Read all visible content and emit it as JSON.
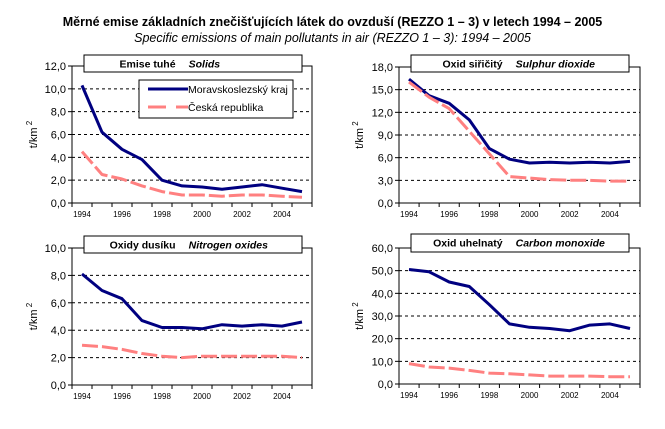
{
  "title": "Měrné emise základních znečišťujících látek do ovzduší (REZZO 1 – 3) v letech 1994 – 2005",
  "subtitle": "Specific emissions of main pollutants in air (REZZO 1 – 3): 1994 – 2005",
  "colors": {
    "msk": "#000080",
    "cr": "#ff8080",
    "grid": "#000000"
  },
  "legend": {
    "position": "top-right (first chart)",
    "items": [
      "Moravskoslezský kraj",
      "Česká republika"
    ]
  },
  "chart_data": [
    {
      "type": "line",
      "title_cz": "Emise tuhé",
      "title_en": "Solids",
      "ylabel": "t/km",
      "ylabel_sup": "2",
      "ylim": [
        0,
        12
      ],
      "yticks": [
        0,
        2,
        4,
        6,
        8,
        10,
        12
      ],
      "ytick_labels": [
        "0,0",
        "2,0",
        "4,0",
        "6,0",
        "8,0",
        "10,0",
        "12,0"
      ],
      "x": [
        1994,
        1995,
        1996,
        1997,
        1998,
        1999,
        2000,
        2001,
        2002,
        2003,
        2004,
        2005
      ],
      "xtick_labels": [
        "1994",
        "1996",
        "1998",
        "2000",
        "2002",
        "2004"
      ],
      "grid": true,
      "series": [
        {
          "name": "Moravskoslezský kraj",
          "values": [
            10.3,
            6.2,
            4.7,
            3.8,
            2.0,
            1.5,
            1.4,
            1.2,
            1.4,
            1.6,
            1.3,
            1.0
          ]
        },
        {
          "name": "Česká republika",
          "values": [
            4.5,
            2.5,
            2.1,
            1.5,
            1.0,
            0.7,
            0.7,
            0.6,
            0.7,
            0.7,
            0.6,
            0.5
          ]
        }
      ]
    },
    {
      "type": "line",
      "title_cz": "Oxid siřičitý",
      "title_en": "Sulphur dioxide",
      "ylabel": "t/km",
      "ylabel_sup": "2",
      "ylim": [
        0,
        18
      ],
      "yticks": [
        0,
        3,
        6,
        9,
        12,
        15,
        18
      ],
      "ytick_labels": [
        "0,0",
        "3,0",
        "6,0",
        "9,0",
        "12,0",
        "15,0",
        "18,0"
      ],
      "x": [
        1994,
        1995,
        1996,
        1997,
        1998,
        1999,
        2000,
        2001,
        2002,
        2003,
        2004,
        2005
      ],
      "xtick_labels": [
        "1994",
        "1996",
        "1998",
        "2000",
        "2002",
        "2004"
      ],
      "grid": true,
      "series": [
        {
          "name": "Moravskoslezský kraj",
          "values": [
            16.4,
            14.2,
            13.2,
            11.0,
            7.2,
            5.8,
            5.3,
            5.4,
            5.3,
            5.4,
            5.3,
            5.5
          ]
        },
        {
          "name": "Česká republika",
          "values": [
            16.0,
            14.0,
            12.5,
            9.5,
            6.5,
            3.5,
            3.3,
            3.1,
            3.0,
            3.0,
            2.9,
            2.9
          ]
        }
      ]
    },
    {
      "type": "line",
      "title_cz": "Oxidy dusíku",
      "title_en": "Nitrogen oxides",
      "ylabel": "t/km",
      "ylabel_sup": "2",
      "ylim": [
        0,
        10
      ],
      "yticks": [
        0,
        2,
        4,
        6,
        8,
        10
      ],
      "ytick_labels": [
        "0,0",
        "2,0",
        "4,0",
        "6,0",
        "8,0",
        "10,0"
      ],
      "x": [
        1994,
        1995,
        1996,
        1997,
        1998,
        1999,
        2000,
        2001,
        2002,
        2003,
        2004,
        2005
      ],
      "xtick_labels": [
        "1994",
        "1996",
        "1998",
        "2000",
        "2002",
        "2004"
      ],
      "grid": true,
      "series": [
        {
          "name": "Moravskoslezský kraj",
          "values": [
            8.1,
            6.9,
            6.3,
            4.7,
            4.2,
            4.2,
            4.1,
            4.4,
            4.3,
            4.4,
            4.3,
            4.6
          ]
        },
        {
          "name": "Česká republika",
          "values": [
            2.9,
            2.8,
            2.6,
            2.3,
            2.1,
            2.0,
            2.1,
            2.1,
            2.1,
            2.1,
            2.1,
            2.0
          ]
        }
      ]
    },
    {
      "type": "line",
      "title_cz": "Oxid uhelnatý",
      "title_en": "Carbon monoxide",
      "ylabel": "t/km",
      "ylabel_sup": "2",
      "ylim": [
        0,
        60
      ],
      "yticks": [
        0,
        10,
        20,
        30,
        40,
        50,
        60
      ],
      "ytick_labels": [
        "0,0",
        "10,0",
        "20,0",
        "30,0",
        "40,0",
        "50,0",
        "60,0"
      ],
      "x": [
        1994,
        1995,
        1996,
        1997,
        1998,
        1999,
        2000,
        2001,
        2002,
        2003,
        2004,
        2005
      ],
      "xtick_labels": [
        "1994",
        "1996",
        "1998",
        "2000",
        "2002",
        "2004"
      ],
      "grid": true,
      "series": [
        {
          "name": "Moravskoslezský kraj",
          "values": [
            50.5,
            49.5,
            45.0,
            43.0,
            35.0,
            26.5,
            25.0,
            24.5,
            23.5,
            26.0,
            26.5,
            24.5
          ]
        },
        {
          "name": "Česká republika",
          "values": [
            9.0,
            7.5,
            7.0,
            6.0,
            4.8,
            4.5,
            4.0,
            3.5,
            3.5,
            3.5,
            3.2,
            3.2
          ]
        }
      ]
    }
  ]
}
